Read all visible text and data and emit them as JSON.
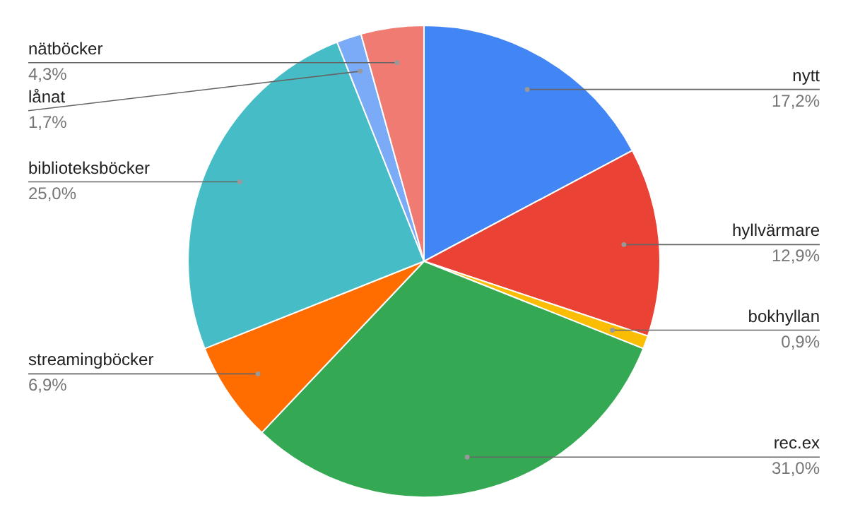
{
  "chart_data": {
    "type": "pie",
    "categories": [
      "nytt",
      "hyllvärmare",
      "bokhyllan",
      "rec.ex",
      "streamingböcker",
      "biblioteksböcker",
      "lånat",
      "nätböcker"
    ],
    "values": [
      17.2,
      12.9,
      0.9,
      31.0,
      6.9,
      25.0,
      1.7,
      4.3
    ],
    "value_labels": [
      "17,2%",
      "12,9%",
      "0,9%",
      "31,0%",
      "6,9%",
      "25,0%",
      "1,7%",
      "4,3%"
    ],
    "colors": [
      "#4285f4",
      "#ea4335",
      "#fbbc04",
      "#34a853",
      "#ff6d01",
      "#46bdc6",
      "#7baaf7",
      "#f07b72"
    ]
  }
}
